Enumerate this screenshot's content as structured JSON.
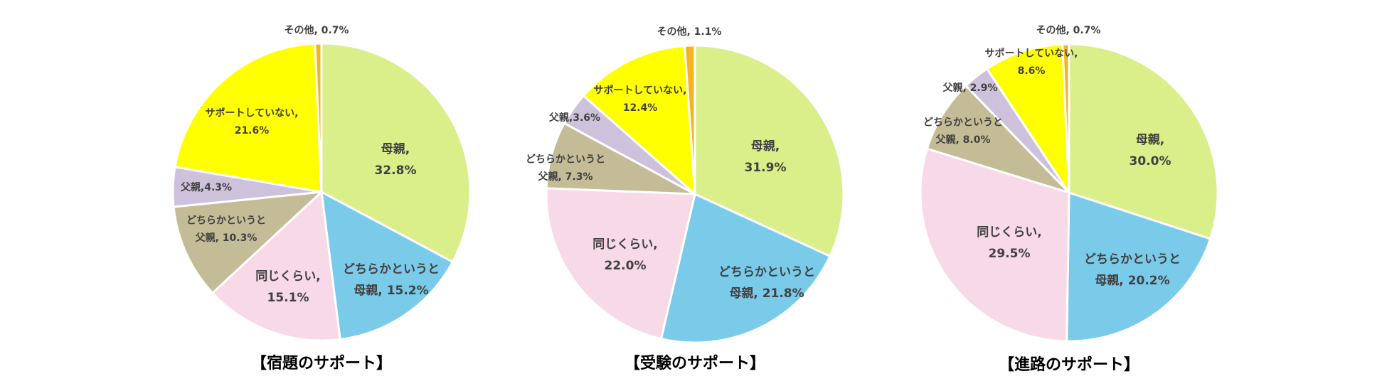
{
  "colors": {
    "mother": "#DAEE8A",
    "leaning_mother": "#7ACBEA",
    "same": "#F8D9E7",
    "leaning_father": "#C4BC97",
    "father": "#CEC1DC",
    "no_support": "#FFFF00",
    "other": "#F5B41E",
    "border": "#FFFFFF",
    "label": "#404040"
  },
  "chart_data": [
    {
      "type": "pie",
      "title": "【宿題のサポート】",
      "slices": [
        {
          "key": "mother",
          "value": 32.8,
          "label_lines": [
            "母親,",
            "32.8%"
          ]
        },
        {
          "key": "leaning_mother",
          "value": 15.2,
          "label_lines": [
            "どちらかというと",
            "母親, 15.2%"
          ]
        },
        {
          "key": "same",
          "value": 15.1,
          "label_lines": [
            "同じくらい,",
            "15.1%"
          ]
        },
        {
          "key": "leaning_father",
          "value": 10.3,
          "label_lines": [
            "どちらかというと",
            "父親, 10.3%"
          ]
        },
        {
          "key": "father",
          "value": 4.3,
          "label_lines": [
            "父親,4.3%"
          ]
        },
        {
          "key": "no_support",
          "value": 21.6,
          "label_lines": [
            "サポートしていない,",
            "21.6%"
          ]
        },
        {
          "key": "other",
          "value": 0.7,
          "label_lines": [
            "その他, 0.7%"
          ]
        }
      ]
    },
    {
      "type": "pie",
      "title": "【受験のサポート】",
      "slices": [
        {
          "key": "mother",
          "value": 31.9,
          "label_lines": [
            "母親,",
            "31.9%"
          ]
        },
        {
          "key": "leaning_mother",
          "value": 21.8,
          "label_lines": [
            "どちらかというと",
            "母親, 21.8%"
          ]
        },
        {
          "key": "same",
          "value": 22.0,
          "label_lines": [
            "同じくらい,",
            "22.0%"
          ]
        },
        {
          "key": "leaning_father",
          "value": 7.3,
          "label_lines": [
            "どちらかというと",
            "父親, 7.3%"
          ]
        },
        {
          "key": "father",
          "value": 3.6,
          "label_lines": [
            "父親,3.6%"
          ]
        },
        {
          "key": "no_support",
          "value": 12.4,
          "label_lines": [
            "サポートしていない,",
            "12.4%"
          ]
        },
        {
          "key": "other",
          "value": 1.1,
          "label_lines": [
            "その他, 1.1%"
          ]
        }
      ]
    },
    {
      "type": "pie",
      "title": "【進路のサポート】",
      "slices": [
        {
          "key": "mother",
          "value": 30.0,
          "label_lines": [
            "母親,",
            "30.0%"
          ]
        },
        {
          "key": "leaning_mother",
          "value": 20.2,
          "label_lines": [
            "どちらかというと",
            "母親, 20.2%"
          ]
        },
        {
          "key": "same",
          "value": 29.5,
          "label_lines": [
            "同じくらい,",
            "29.5%"
          ]
        },
        {
          "key": "leaning_father",
          "value": 8.0,
          "label_lines": [
            "どちらかというと",
            "父親, 8.0%"
          ]
        },
        {
          "key": "father",
          "value": 2.9,
          "label_lines": [
            "父親, 2.9%"
          ]
        },
        {
          "key": "no_support",
          "value": 8.6,
          "label_lines": [
            "サポートしていない,",
            "8.6%"
          ]
        },
        {
          "key": "other",
          "value": 0.7,
          "label_lines": [
            "その他, 0.7%"
          ]
        }
      ]
    }
  ]
}
